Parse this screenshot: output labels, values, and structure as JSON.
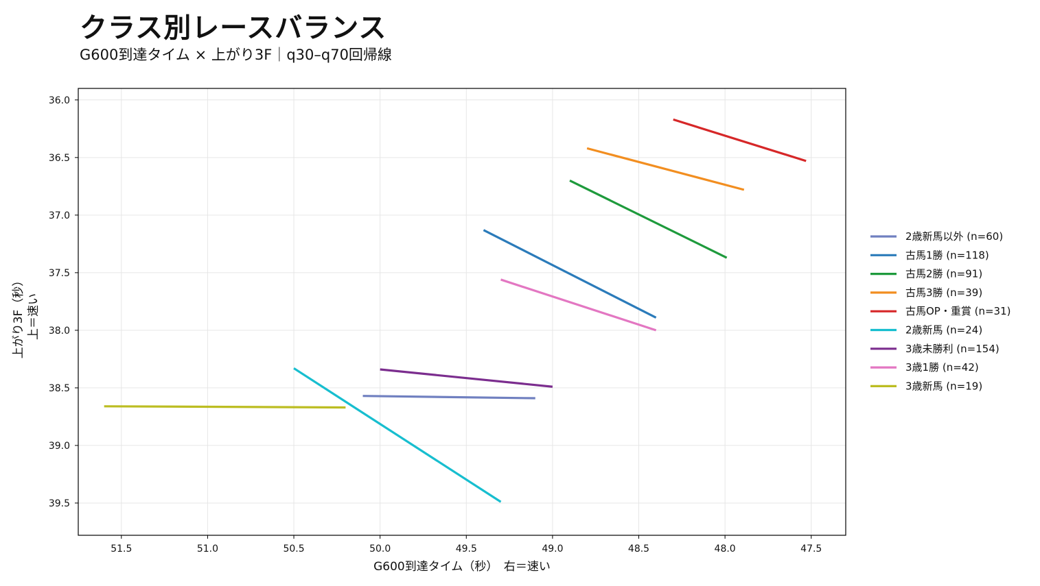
{
  "header": {
    "title": "クラス別レースバランス",
    "subtitle": "G600到達タイム × 上がり3F｜q30–q70回帰線"
  },
  "chart_data": {
    "type": "line",
    "xlabel": "G600到達タイム（秒）　右＝速い",
    "ylabel_line1": "上がり3F（秒）",
    "ylabel_line2": "上＝速い",
    "xlim": [
      51.75,
      47.3
    ],
    "ylim": [
      39.78,
      35.9
    ],
    "x_inverted": true,
    "y_inverted": true,
    "x_ticks": [
      51.5,
      51.0,
      50.5,
      50.0,
      49.5,
      49.0,
      48.5,
      48.0,
      47.5
    ],
    "y_ticks": [
      36.0,
      36.5,
      37.0,
      37.5,
      38.0,
      38.5,
      39.0,
      39.5
    ],
    "grid": true,
    "legend_position": "right",
    "series": [
      {
        "name": "2歳新馬以外 (n=60)",
        "color": "#7080c0",
        "x": [
          50.1,
          49.1
        ],
        "y": [
          38.57,
          38.59
        ]
      },
      {
        "name": "古馬1勝 (n=118)",
        "color": "#2b7bba",
        "x": [
          49.4,
          48.4
        ],
        "y": [
          37.13,
          37.89
        ]
      },
      {
        "name": "古馬2勝 (n=91)",
        "color": "#1e9a3c",
        "x": [
          48.9,
          47.99
        ],
        "y": [
          36.7,
          37.37
        ]
      },
      {
        "name": "古馬3勝 (n=39)",
        "color": "#f28e20",
        "x": [
          48.8,
          47.89
        ],
        "y": [
          36.42,
          36.78
        ]
      },
      {
        "name": "古馬OP・重賞 (n=31)",
        "color": "#d62728",
        "x": [
          48.3,
          47.53
        ],
        "y": [
          36.17,
          36.53
        ]
      },
      {
        "name": "2歳新馬 (n=24)",
        "color": "#17becf",
        "x": [
          50.5,
          49.3
        ],
        "y": [
          38.33,
          39.49
        ]
      },
      {
        "name": "3歳未勝利 (n=154)",
        "color": "#7b2d8e",
        "x": [
          50.0,
          49.0
        ],
        "y": [
          38.34,
          38.49
        ]
      },
      {
        "name": "3歳1勝 (n=42)",
        "color": "#e377c2",
        "x": [
          49.3,
          48.4
        ],
        "y": [
          37.56,
          38.0
        ]
      },
      {
        "name": "3歳新馬 (n=19)",
        "color": "#bcbd22",
        "x": [
          51.6,
          50.2
        ],
        "y": [
          38.66,
          38.67
        ]
      }
    ]
  }
}
